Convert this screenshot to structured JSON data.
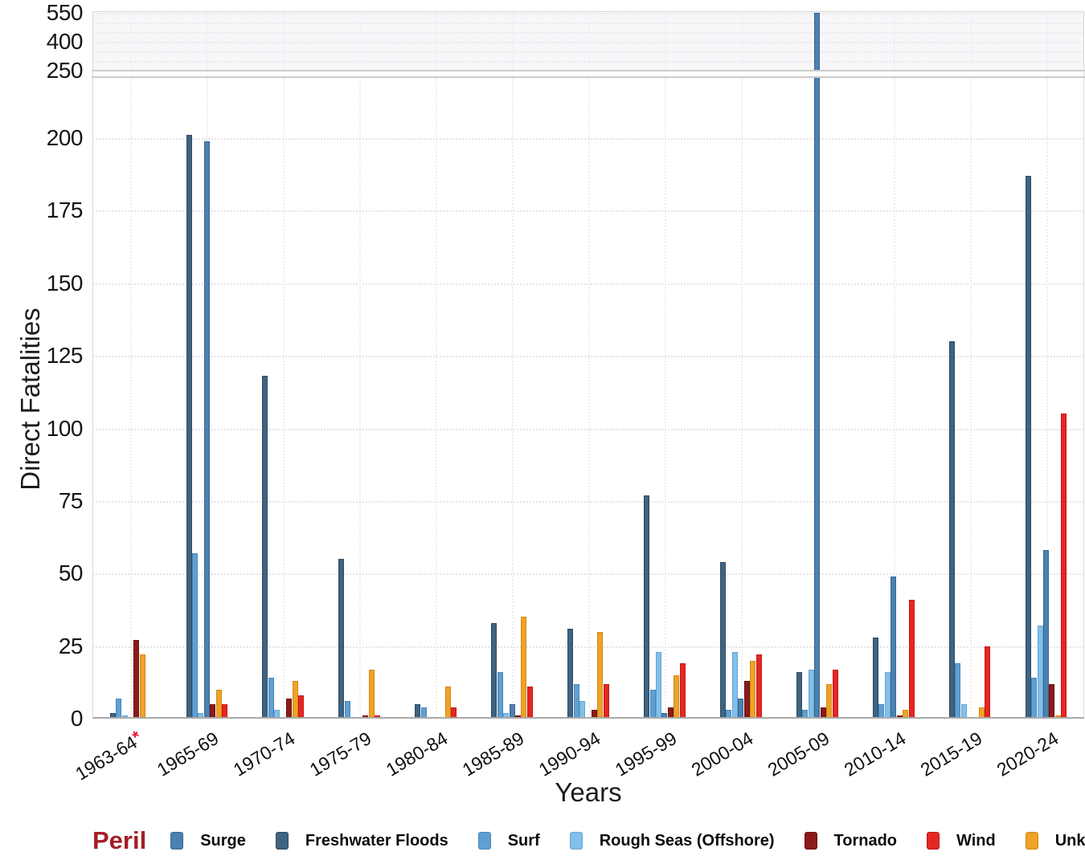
{
  "figure": {
    "y_axis_title": "Direct Fatalities",
    "x_axis_title": "Years",
    "legend_title": "Peril",
    "footnote_marker": "*",
    "footnote_color": "#e8112d"
  },
  "chart_data": {
    "type": "bar",
    "title": "",
    "xlabel": "Years",
    "ylabel": "Direct Fatalities",
    "categories": [
      "1963-64*",
      "1965-69",
      "1970-74",
      "1975-79",
      "1980-84",
      "1985-89",
      "1990-94",
      "1995-99",
      "2000-04",
      "2005-09",
      "2010-14",
      "2015-19",
      "2020-24"
    ],
    "series": [
      {
        "name": "Surge",
        "color": "#4c80b0",
        "border": "#3a6690",
        "values": [
          0,
          199,
          0,
          0,
          0,
          5,
          0,
          2,
          7,
          550,
          49,
          0,
          58
        ]
      },
      {
        "name": "Freshwater Floods",
        "color": "#3f6482",
        "border": "#2d4b63",
        "values": [
          2,
          201,
          118,
          55,
          5,
          33,
          31,
          77,
          54,
          16,
          28,
          130,
          187
        ]
      },
      {
        "name": "Surf",
        "color": "#5fa0d3",
        "border": "#4a86b8",
        "values": [
          7,
          57,
          14,
          6,
          4,
          16,
          12,
          10,
          3,
          3,
          5,
          19,
          14
        ]
      },
      {
        "name": "Rough Seas (Offshore)",
        "color": "#82c0ea",
        "border": "#64a5d2",
        "values": [
          1,
          2,
          3,
          0,
          0,
          2,
          6,
          23,
          23,
          17,
          16,
          5,
          32
        ]
      },
      {
        "name": "Tornado",
        "color": "#8c1a1a",
        "border": "#6d1111",
        "values": [
          27,
          5,
          7,
          1,
          0,
          1,
          3,
          4,
          13,
          4,
          1,
          0,
          12
        ]
      },
      {
        "name": "Wind",
        "color": "#e52721",
        "border": "#c01a16",
        "values": [
          0,
          5,
          8,
          1,
          4,
          11,
          12,
          19,
          22,
          17,
          41,
          25,
          105
        ]
      },
      {
        "name": "Unknown",
        "color": "#efa228",
        "border": "#d18a14",
        "values": [
          22,
          10,
          13,
          17,
          11,
          35,
          30,
          15,
          20,
          12,
          3,
          4,
          1
        ]
      }
    ],
    "bar_draw_order": [
      "Freshwater Floods",
      "Surf",
      "Rough Seas (Offshore)",
      "Surge",
      "Tornado",
      "Unknown",
      "Wind"
    ],
    "y_ticks_main": [
      0,
      25,
      50,
      75,
      100,
      125,
      150,
      175,
      200
    ],
    "y_ticks_compressed": [
      250,
      400,
      550
    ],
    "y_gridlines_compressed": [
      300,
      350,
      400,
      450,
      500,
      550
    ],
    "axis_break": {
      "below": 225,
      "above": 250
    },
    "ylim_main": [
      0,
      225
    ],
    "ylim_compressed": [
      250,
      560
    ],
    "grid": "dotted",
    "legend_position": "bottom"
  }
}
